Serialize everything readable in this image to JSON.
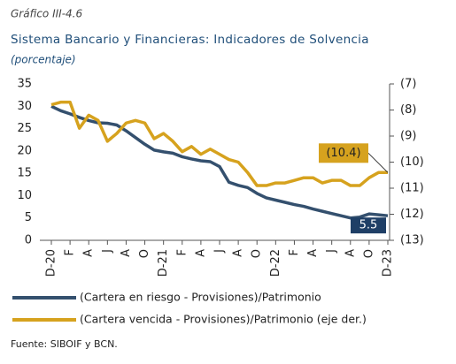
{
  "chart_data": {
    "type": "line",
    "kicker": "Gráfico III-4.6",
    "title": "Sistema Bancario y Financieras: Indicadores de Solvencia",
    "subtitle": "(porcentaje)",
    "source": "Fuente: SIBOIF y BCN.",
    "categories": [
      "D-20",
      null,
      "F",
      null,
      "A",
      null,
      "J",
      null,
      "A",
      null,
      "O",
      null,
      "D-21",
      null,
      "F",
      null,
      "A",
      null,
      "J",
      null,
      "A",
      null,
      "O",
      null,
      "D-22",
      null,
      "F",
      null,
      "A",
      null,
      "J",
      null,
      "A",
      null,
      "O",
      null,
      "D-23"
    ],
    "series": [
      {
        "name": "(Cartera en riesgo - Provisiones)/Patrimonio",
        "color": "#34506e",
        "values": [
          30,
          29,
          28.3,
          27.5,
          26.8,
          26.3,
          26.2,
          25.8,
          24.5,
          23,
          21.5,
          20.2,
          19.8,
          19.5,
          18.7,
          18.2,
          17.8,
          17.6,
          16.5,
          13,
          12.3,
          11.8,
          10.5,
          9.5,
          9,
          8.5,
          8,
          7.6,
          7,
          6.5,
          6,
          5.5,
          5,
          5.2,
          5.9,
          5.7,
          5.5
        ],
        "value_labels": [
          null,
          null,
          null,
          null,
          null,
          null,
          null,
          null,
          null,
          null,
          null,
          null,
          null,
          null,
          null,
          null,
          null,
          null,
          null,
          null,
          null,
          null,
          null,
          null,
          null,
          null,
          null,
          null,
          null,
          null,
          null,
          null,
          null,
          null,
          null,
          null,
          "5.5"
        ]
      },
      {
        "name": "(Cartera vencida - Provisiones)/Patrimonio (eje der.)",
        "color": "#d6a21e",
        "axis": "y2",
        "values": [
          -7.8,
          -7.7,
          -7.7,
          -8.7,
          -8.2,
          -8.4,
          -9.2,
          -8.9,
          -8.5,
          -8.4,
          -8.5,
          -9.1,
          -8.9,
          -9.2,
          -9.6,
          -9.4,
          -9.7,
          -9.5,
          -9.7,
          -9.9,
          -10.0,
          -10.4,
          -10.9,
          -10.9,
          -10.8,
          -10.8,
          -10.7,
          -10.6,
          -10.6,
          -10.8,
          -10.7,
          -10.7,
          -10.9,
          -10.9,
          -10.6,
          -10.4,
          -10.4
        ],
        "value_labels": [
          null,
          null,
          null,
          null,
          null,
          null,
          null,
          null,
          null,
          null,
          null,
          null,
          null,
          null,
          null,
          null,
          null,
          null,
          null,
          null,
          null,
          null,
          null,
          null,
          null,
          null,
          null,
          null,
          null,
          null,
          null,
          null,
          null,
          null,
          null,
          null,
          "(10.4)"
        ]
      }
    ],
    "ylim": [
      0,
      35
    ],
    "yticks": [
      0,
      5,
      10,
      15,
      20,
      25,
      30,
      35
    ],
    "y2lim": [
      -13,
      -7
    ],
    "y2ticks": [
      {
        "value": -7,
        "label": "(7)"
      },
      {
        "value": -8,
        "label": "(8)"
      },
      {
        "value": -9,
        "label": "(9)"
      },
      {
        "value": -10,
        "label": "(10)"
      },
      {
        "value": -11,
        "label": "(11)"
      },
      {
        "value": -12,
        "label": "(12)"
      },
      {
        "value": -13,
        "label": "(13)"
      }
    ],
    "grid": false
  }
}
